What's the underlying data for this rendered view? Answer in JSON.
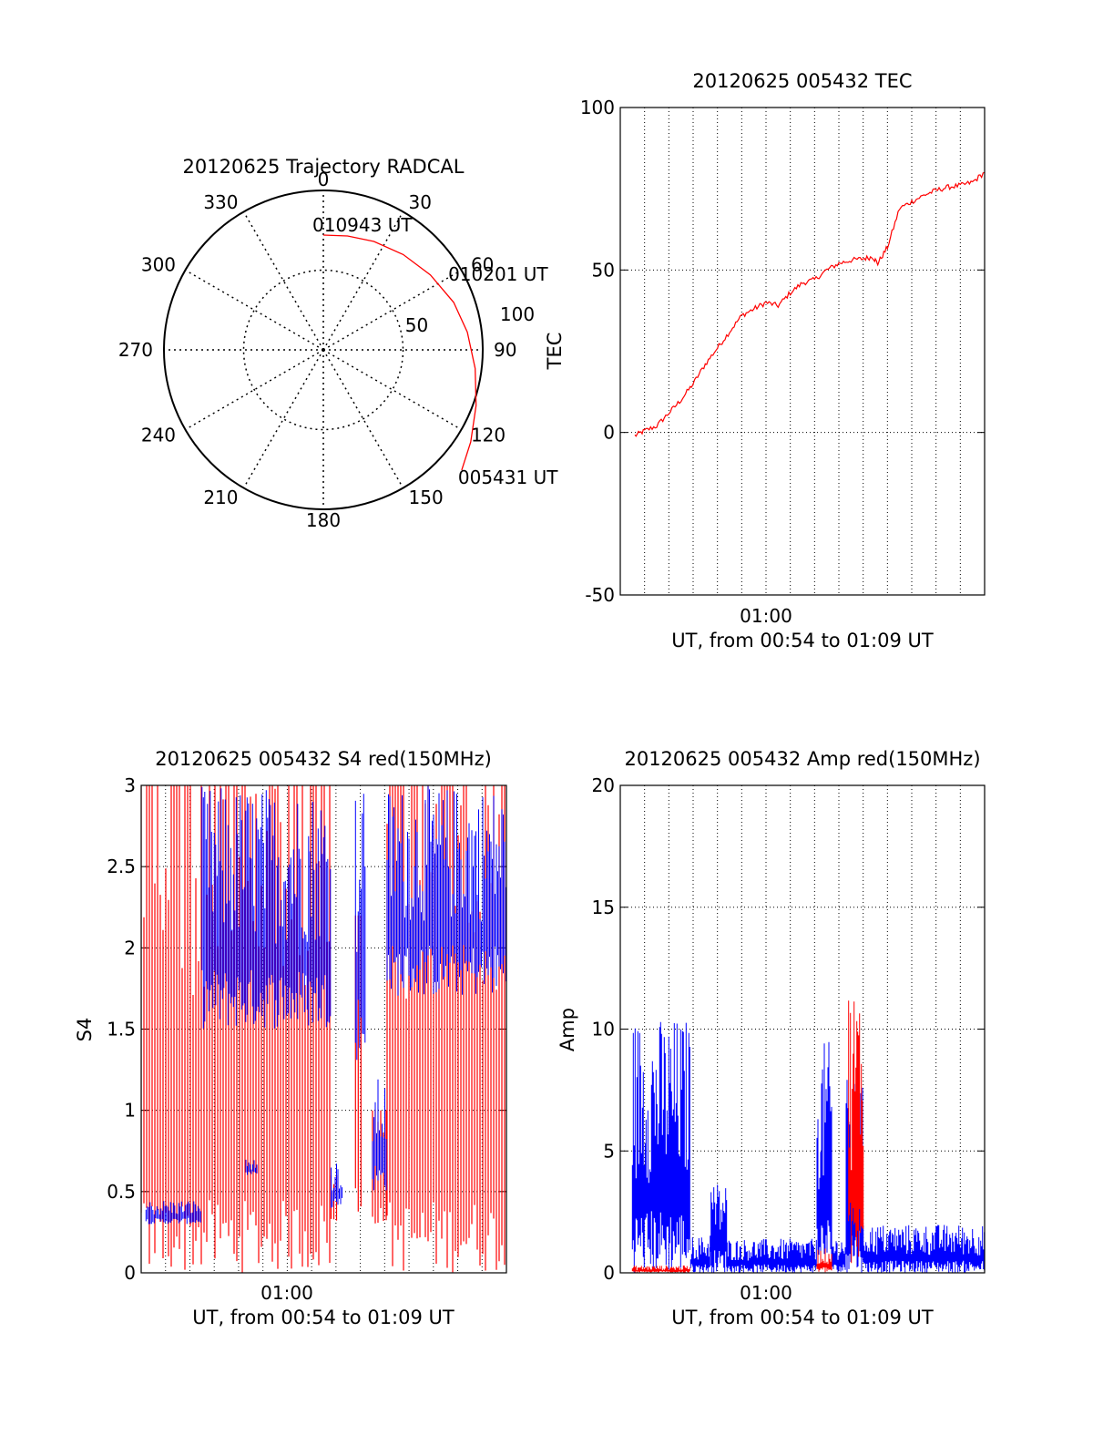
{
  "colors": {
    "red_series": "#ff0000",
    "blue_series": "#0000ff",
    "axes": "#000000",
    "background": "#ffffff"
  },
  "chart_data": [
    {
      "type": "polar",
      "title": "20120625 Trajectory RADCAL",
      "angle_labels": [
        "0",
        "30",
        "60",
        "90",
        "120",
        "150",
        "180",
        "210",
        "240",
        "270",
        "300",
        "330"
      ],
      "radius_labels": [
        "50",
        "100"
      ],
      "start_label": "010943 UT",
      "mid_label": "010201 UT",
      "end_label": "005431 UT",
      "series": [
        {
          "color": "#ff0000",
          "points": [
            {
              "az": 0,
              "zenith": 72
            },
            {
              "az": 12,
              "zenith": 73
            },
            {
              "az": 25,
              "zenith": 75
            },
            {
              "az": 40,
              "zenith": 78
            },
            {
              "az": 55,
              "zenith": 82
            },
            {
              "az": 70,
              "zenith": 87
            },
            {
              "az": 83,
              "zenith": 91
            },
            {
              "az": 97,
              "zenith": 96
            },
            {
              "az": 110,
              "zenith": 102
            },
            {
              "az": 122,
              "zenith": 109
            },
            {
              "az": 131,
              "zenith": 115
            }
          ]
        }
      ]
    },
    {
      "type": "line",
      "title": "20120625 005432 TEC",
      "ylabel": "TEC",
      "xlabel": "UT, from 00:54 to 01:09 UT",
      "xtick_label": "01:00",
      "ylim": [
        -50,
        100
      ],
      "yticks": [
        "-50",
        "0",
        "50",
        "100"
      ],
      "x_range_minutes": [
        54.5,
        69.5
      ],
      "x_grid_minutes": [
        55.5,
        56.5,
        57.5,
        58.5,
        59.5,
        60.5,
        61.5,
        62.5,
        63.5,
        64.5,
        65.5,
        66.5,
        67.5,
        68.5
      ],
      "series": [
        {
          "color": "#ff0000",
          "x": [
            55.1,
            55.5,
            56,
            56.5,
            57,
            57.5,
            58,
            58.5,
            59,
            59.5,
            60,
            60.5,
            61,
            61.5,
            62,
            62.5,
            63,
            63.5,
            64,
            64.5,
            64.9,
            65.1,
            65.5,
            66,
            66.5,
            67,
            67.5,
            68,
            68.5,
            69,
            69.5
          ],
          "y": [
            -1,
            0.5,
            2,
            6,
            10,
            15,
            21,
            26,
            31,
            36,
            38,
            40,
            39,
            43,
            46,
            47,
            50,
            52,
            53,
            53.5,
            54,
            52,
            57,
            69,
            71,
            73,
            74.5,
            75.5,
            76,
            77,
            80
          ]
        }
      ]
    },
    {
      "type": "line",
      "title": "20120625 005432 S4 red(150MHz)",
      "ylabel": "S4",
      "xlabel": "UT, from 00:54 to 01:09 UT",
      "xtick_label": "01:00",
      "ylim": [
        0,
        3
      ],
      "yticks": [
        "0",
        "0.5",
        "1",
        "1.5",
        "2",
        "2.5",
        "3"
      ],
      "x_range_minutes": [
        54.5,
        69.5
      ],
      "x_grid_minutes": [
        55.5,
        56.5,
        57.5,
        58.5,
        59.5,
        60.5,
        61.5,
        62.5,
        63.5,
        64.5,
        65.5,
        66.5,
        67.5,
        68.5
      ],
      "series": [
        {
          "color": "#ff0000",
          "style": "dense vertical spikes",
          "segments": [
            {
              "x0": 54.5,
              "x1": 62.3,
              "min": 0,
              "max": 3
            },
            {
              "x0": 62.3,
              "x1": 62.6,
              "min": 0.3,
              "max": 0.6
            },
            {
              "x0": 63.3,
              "x1": 63.6,
              "min": 0.3,
              "max": 2.2
            },
            {
              "x0": 64.0,
              "x1": 64.6,
              "min": 0.3,
              "max": 1.0
            },
            {
              "x0": 64.6,
              "x1": 69.5,
              "min": 0,
              "max": 3
            }
          ]
        },
        {
          "color": "#0000ff",
          "style": "noisy band",
          "segments": [
            {
              "x0": 54.7,
              "x1": 57.0,
              "min": 0.3,
              "max": 0.45
            },
            {
              "x0": 58.8,
              "x1": 59.3,
              "min": 0.6,
              "max": 0.7
            },
            {
              "x0": 57.0,
              "x1": 62.3,
              "min": 1.5,
              "max": 3
            },
            {
              "x0": 62.3,
              "x1": 62.8,
              "min": 0.4,
              "max": 0.7
            },
            {
              "x0": 63.3,
              "x1": 63.7,
              "min": 1.3,
              "max": 3
            },
            {
              "x0": 64.0,
              "x1": 64.6,
              "min": 0.5,
              "max": 1.2
            },
            {
              "x0": 64.6,
              "x1": 69.5,
              "min": 1.7,
              "max": 3
            }
          ]
        }
      ]
    },
    {
      "type": "line",
      "title": "20120625 005432 Amp red(150MHz)",
      "ylabel": "Amp",
      "xlabel": "UT, from 00:54 to 01:09 UT",
      "xtick_label": "01:00",
      "ylim": [
        0,
        20
      ],
      "yticks": [
        "0",
        "5",
        "10",
        "15",
        "20"
      ],
      "x_range_minutes": [
        54.5,
        69.5
      ],
      "x_grid_minutes": [
        55.5,
        56.5,
        57.5,
        58.5,
        59.5,
        60.5,
        61.5,
        62.5,
        63.5,
        64.5,
        65.5,
        66.5,
        67.5,
        68.5
      ],
      "series": [
        {
          "color": "#0000ff",
          "style": "noisy band",
          "segments": [
            {
              "x0": 55.0,
              "x1": 57.4,
              "min": 0,
              "max": 10.5
            },
            {
              "x0": 57.4,
              "x1": 58.2,
              "min": 0,
              "max": 1.5
            },
            {
              "x0": 58.2,
              "x1": 58.9,
              "min": 0,
              "max": 3.8
            },
            {
              "x0": 58.9,
              "x1": 62.6,
              "min": 0,
              "max": 1.4
            },
            {
              "x0": 62.6,
              "x1": 63.2,
              "min": 0,
              "max": 9.5
            },
            {
              "x0": 63.2,
              "x1": 63.8,
              "min": 0,
              "max": 1.5
            },
            {
              "x0": 63.8,
              "x1": 64.5,
              "min": 0,
              "max": 8
            },
            {
              "x0": 64.5,
              "x1": 69.5,
              "min": 0,
              "max": 2.0
            }
          ]
        },
        {
          "color": "#ff0000",
          "style": "noisy band",
          "segments": [
            {
              "x0": 55.0,
              "x1": 57.4,
              "min": 0,
              "max": 0.3
            },
            {
              "x0": 62.6,
              "x1": 63.2,
              "min": 0,
              "max": 1.0
            },
            {
              "x0": 63.9,
              "x1": 64.5,
              "min": 0,
              "max": 12.0
            }
          ]
        }
      ]
    }
  ]
}
